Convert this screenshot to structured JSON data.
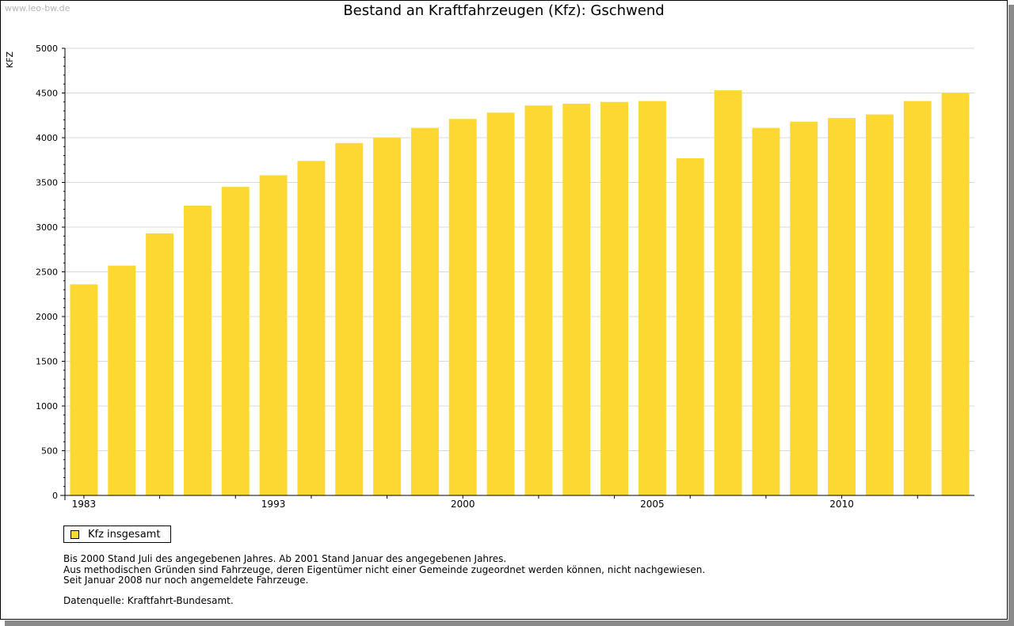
{
  "watermark": "www.leo-bw.de",
  "colors": {
    "bar": "#fdd832",
    "grid": "#d9d9d9",
    "axis": "#000000"
  },
  "legend": {
    "label": "Kfz insgesamt"
  },
  "notes": [
    "Bis 2000 Stand Juli des angegebenen Jahres. Ab 2001 Stand Januar des angegebenen Jahres.",
    "Aus methodischen Gründen sind Fahrzeuge, deren Eigentümer nicht einer Gemeinde zugeordnet werden können, nicht nachgewiesen.",
    "Seit Januar 2008 nur noch angemeldete Fahrzeuge."
  ],
  "source": "Datenquelle: Kraftfahrt-Bundesamt.",
  "chart_data": {
    "type": "bar",
    "title": "Bestand an Kraftfahrzeugen (Kfz): Gschwend",
    "xlabel": "",
    "ylabel": "KFZ",
    "ylim": [
      0,
      5000
    ],
    "yticks": [
      0,
      500,
      1000,
      1500,
      2000,
      2500,
      3000,
      3500,
      4000,
      4500,
      5000
    ],
    "grid": true,
    "legend_position": "bottom-left",
    "categories": [
      "1983",
      "",
      "",
      "",
      "",
      "1993",
      "",
      "",
      "",
      "",
      "2000",
      "",
      "",
      "",
      "",
      "2005",
      "",
      "",
      "",
      "",
      "2010",
      "",
      "",
      ""
    ],
    "series": [
      {
        "name": "Kfz insgesamt",
        "values": [
          2360,
          2570,
          2930,
          3240,
          3450,
          3580,
          3740,
          3940,
          4000,
          4110,
          4210,
          4280,
          4360,
          4380,
          4400,
          4410,
          3770,
          4530,
          4110,
          4180,
          4220,
          4260,
          4410,
          4500
        ]
      }
    ]
  }
}
